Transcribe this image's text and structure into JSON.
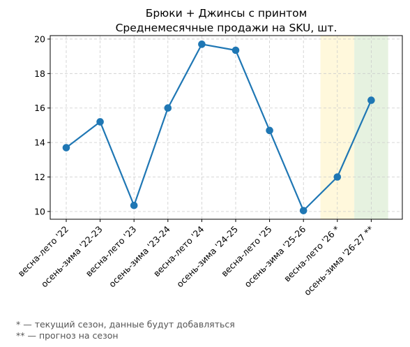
{
  "chart_data": {
    "type": "line",
    "title": "Брюки + Джинсы с принтом",
    "subtitle": "Среднемесячные продажи на SKU, шт.",
    "xlabel": "",
    "ylabel": "",
    "categories": [
      "весна-лето '22",
      "осень-зима '22-23",
      "весна-лето '23",
      "осень-зима '23-24",
      "весна-лето '24",
      "осень-зима '24-25",
      "весна-лето '25",
      "осень-зима '25-26",
      "весна-лето '26 *",
      "осень-зима '26-27 **"
    ],
    "series": [
      {
        "values": [
          13.7,
          15.2,
          10.35,
          16.0,
          19.7,
          19.35,
          14.7,
          10.05,
          12.0,
          16.45
        ]
      }
    ],
    "ylim": [
      9.55,
      20.2
    ],
    "yticks": [
      10,
      12,
      14,
      16,
      18,
      20
    ],
    "grid": true,
    "highlight_regions": [
      {
        "from_index": 7.5,
        "to_index": 8.5,
        "color": "#fff8dc"
      },
      {
        "from_index": 8.5,
        "to_index": 9.5,
        "color": "#e6f2e0"
      }
    ],
    "colors": {
      "line": "#1f77b4",
      "grid": "#cccccc"
    }
  },
  "footnotes": [
    "* — текущий сезон, данные будут добавляться",
    "** — прогноз на сезон"
  ]
}
